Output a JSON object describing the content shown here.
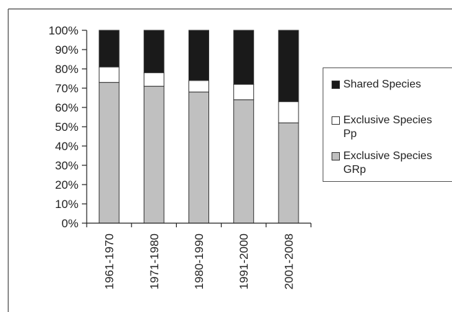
{
  "chart_data": {
    "type": "bar",
    "stacked": true,
    "percent": true,
    "categories": [
      "1961-1970",
      "1971-1980",
      "1980-1990",
      "1991-2000",
      "2001-2008"
    ],
    "series": [
      {
        "name": "Exclusive Species\nGRp",
        "values": [
          73,
          71,
          68,
          64,
          52
        ],
        "color": "#c0c0c0"
      },
      {
        "name": "Exclusive Species\nPp",
        "values": [
          8,
          7,
          6,
          8,
          11
        ],
        "color": "#ffffff"
      },
      {
        "name": "Shared Species",
        "values": [
          19,
          22,
          26,
          28,
          37
        ],
        "color": "#1a1a1a"
      }
    ],
    "ylim": [
      0,
      100
    ],
    "yticks": [
      "0%",
      "10%",
      "20%",
      "30%",
      "40%",
      "50%",
      "60%",
      "70%",
      "80%",
      "90%",
      "100%"
    ],
    "grid": false,
    "legend_position": "right"
  },
  "legend": {
    "items": [
      {
        "label": "Shared Species",
        "color": "#1a1a1a"
      },
      {
        "label": "Exclusive Species\nPp",
        "color": "#ffffff"
      },
      {
        "label": "Exclusive Species\nGRp",
        "color": "#c0c0c0"
      }
    ]
  }
}
